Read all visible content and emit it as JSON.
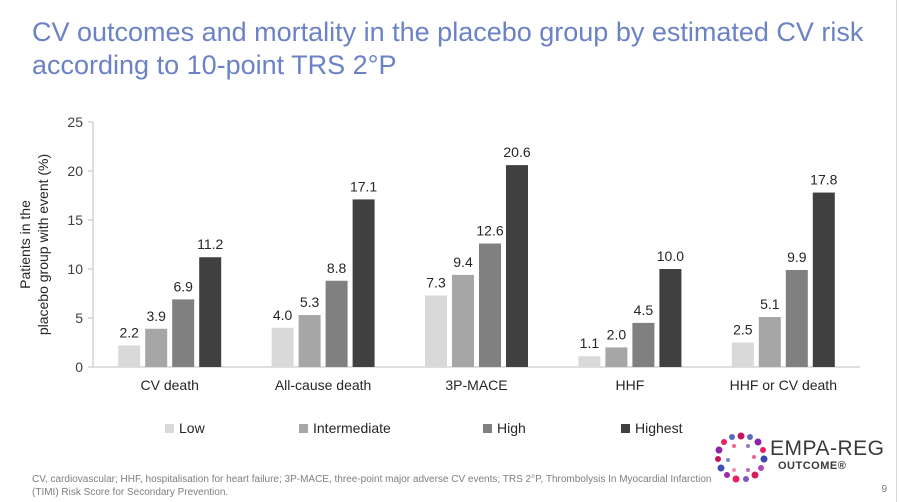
{
  "title": "CV outcomes and mortality in the placebo group by estimated CV risk according to 10-point TRS 2°P",
  "colors": {
    "title": "#6b82c4",
    "series": [
      "#d9d9d9",
      "#a6a6a6",
      "#808080",
      "#404040"
    ]
  },
  "chart_data": {
    "type": "bar",
    "ylabel_lines": [
      "Patients in the",
      "placebo group with event (%)"
    ],
    "ylim": [
      0,
      25
    ],
    "yticks": [
      "0",
      "5",
      "10",
      "15",
      "20",
      "25"
    ],
    "grid": false,
    "legend_position": "bottom",
    "categories": [
      "CV death",
      "All-cause death",
      "3P-MACE",
      "HHF",
      "HHF or CV death"
    ],
    "series": [
      {
        "name": "Low",
        "values": [
          2.2,
          4.0,
          7.3,
          1.1,
          2.5
        ],
        "labels": [
          "2.2",
          "4.0",
          "7.3",
          "1.1",
          "2.5"
        ]
      },
      {
        "name": "Intermediate",
        "values": [
          3.9,
          5.3,
          9.4,
          2.0,
          5.1
        ],
        "labels": [
          "3.9",
          "5.3",
          "9.4",
          "2.0",
          "5.1"
        ]
      },
      {
        "name": "High",
        "values": [
          6.9,
          8.8,
          12.6,
          4.5,
          9.9
        ],
        "labels": [
          "6.9",
          "8.8",
          "12.6",
          "4.5",
          "9.9"
        ]
      },
      {
        "name": "Highest",
        "values": [
          11.2,
          17.1,
          20.6,
          10.0,
          17.8
        ],
        "labels": [
          "11.2",
          "17.1",
          "20.6",
          "10.0",
          "17.8"
        ]
      }
    ]
  },
  "footnote": "CV, cardiovascular; HHF, hospitalisation for heart failure; 3P-MACE, three-point major adverse CV events; TRS 2°P, Thrombolysis In Myocardial Infarction (TIMI) Risk Score for Secondary Prevention.",
  "page_number": "9",
  "logo": {
    "name": "EMPA-REG",
    "sub": "OUTCOME®"
  }
}
